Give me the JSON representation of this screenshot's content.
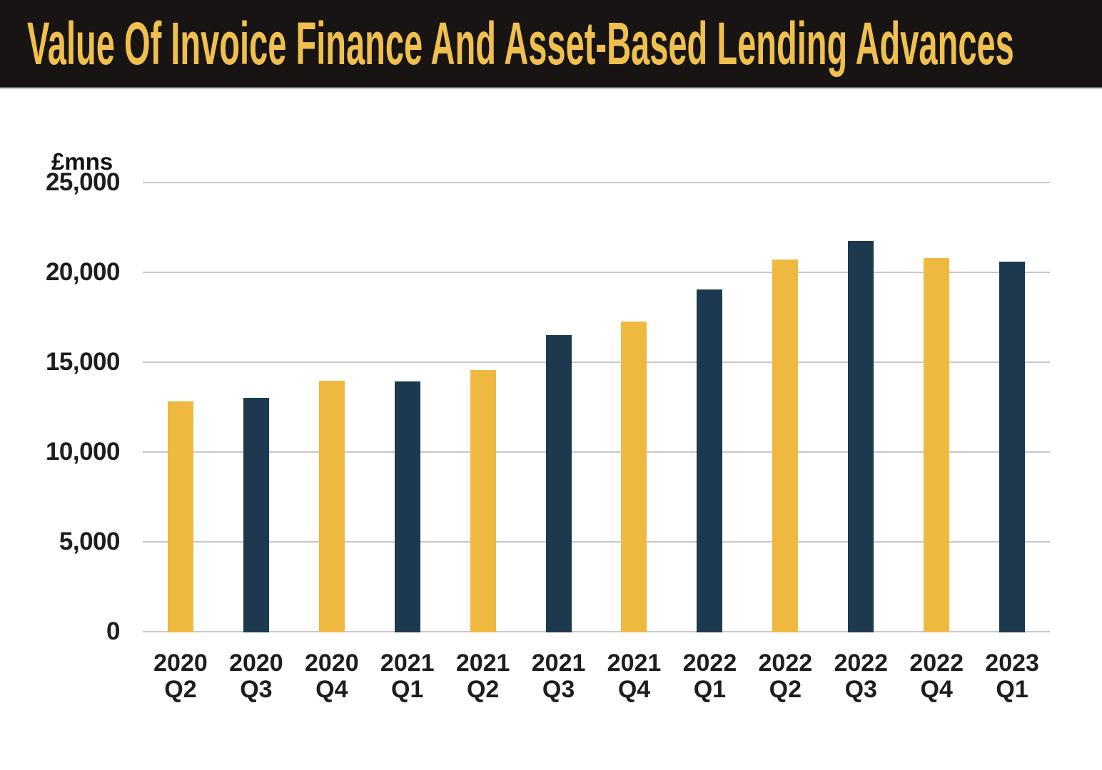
{
  "header": {
    "title": "Value Of Invoice Finance And Asset-Based Lending Advances",
    "bg_color": "#171413",
    "title_color": "#F0C04E"
  },
  "chart_data": {
    "type": "bar",
    "title": "Value Of Invoice Finance And Asset-Based Lending Advances",
    "unit_label": "£mns",
    "xlabel": "",
    "ylabel": "£mns",
    "ylim": [
      0,
      25000
    ],
    "grid": true,
    "legend": false,
    "gridline_color": "#C8C8C8",
    "background": "#FFFFFF",
    "bar_colors_alternating": [
      "#EFB93F",
      "#1C3950"
    ],
    "y_ticks": [
      {
        "value": 0,
        "label": "0"
      },
      {
        "value": 5000,
        "label": "5,000"
      },
      {
        "value": 10000,
        "label": "10,000"
      },
      {
        "value": 15000,
        "label": "15,000"
      },
      {
        "value": 20000,
        "label": "20,000"
      },
      {
        "value": 25000,
        "label": "25,000"
      }
    ],
    "categories": [
      {
        "year": "2020",
        "quarter": "Q2"
      },
      {
        "year": "2020",
        "quarter": "Q3"
      },
      {
        "year": "2020",
        "quarter": "Q4"
      },
      {
        "year": "2021",
        "quarter": "Q1"
      },
      {
        "year": "2021",
        "quarter": "Q2"
      },
      {
        "year": "2021",
        "quarter": "Q3"
      },
      {
        "year": "2021",
        "quarter": "Q4"
      },
      {
        "year": "2022",
        "quarter": "Q1"
      },
      {
        "year": "2022",
        "quarter": "Q2"
      },
      {
        "year": "2022",
        "quarter": "Q3"
      },
      {
        "year": "2022",
        "quarter": "Q4"
      },
      {
        "year": "2023",
        "quarter": "Q1"
      }
    ],
    "values": [
      12850,
      13050,
      14000,
      13950,
      14600,
      16550,
      17300,
      19100,
      20750,
      21800,
      20850,
      20650
    ]
  }
}
